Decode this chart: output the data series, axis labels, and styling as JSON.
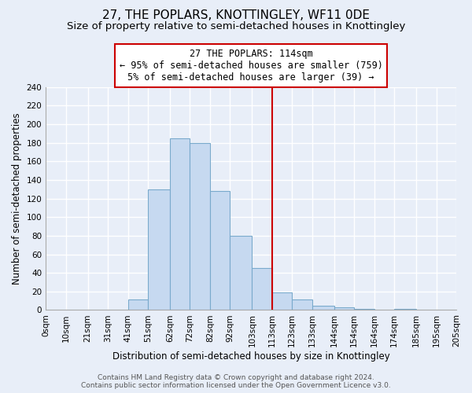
{
  "title": "27, THE POPLARS, KNOTTINGLEY, WF11 0DE",
  "subtitle": "Size of property relative to semi-detached houses in Knottingley",
  "xlabel": "Distribution of semi-detached houses by size in Knottingley",
  "ylabel": "Number of semi-detached properties",
  "bin_edges": [
    0,
    10,
    21,
    31,
    41,
    51,
    62,
    72,
    82,
    92,
    103,
    113,
    123,
    133,
    144,
    154,
    164,
    174,
    185,
    195,
    205
  ],
  "bin_counts": [
    0,
    0,
    0,
    0,
    11,
    130,
    185,
    180,
    128,
    80,
    45,
    19,
    11,
    5,
    3,
    1,
    0,
    1,
    0,
    0
  ],
  "tick_labels": [
    "0sqm",
    "10sqm",
    "21sqm",
    "31sqm",
    "41sqm",
    "51sqm",
    "62sqm",
    "72sqm",
    "82sqm",
    "92sqm",
    "103sqm",
    "113sqm",
    "123sqm",
    "133sqm",
    "144sqm",
    "154sqm",
    "164sqm",
    "174sqm",
    "185sqm",
    "195sqm",
    "205sqm"
  ],
  "bar_color": "#c6d9f0",
  "bar_edge_color": "#7aaacc",
  "vline_x": 113,
  "vline_color": "#cc0000",
  "annotation_title": "27 THE POPLARS: 114sqm",
  "annotation_line1": "← 95% of semi-detached houses are smaller (759)",
  "annotation_line2": "5% of semi-detached houses are larger (39) →",
  "annotation_box_color": "#ffffff",
  "annotation_box_edge": "#cc0000",
  "ylim": [
    0,
    240
  ],
  "yticks": [
    0,
    20,
    40,
    60,
    80,
    100,
    120,
    140,
    160,
    180,
    200,
    220,
    240
  ],
  "footer1": "Contains HM Land Registry data © Crown copyright and database right 2024.",
  "footer2": "Contains public sector information licensed under the Open Government Licence v3.0.",
  "bg_color": "#e8eef8",
  "grid_color": "#ffffff",
  "title_fontsize": 11,
  "subtitle_fontsize": 9.5,
  "axis_label_fontsize": 8.5,
  "tick_fontsize": 7.5,
  "footer_fontsize": 6.5,
  "ann_fontsize": 8.5
}
